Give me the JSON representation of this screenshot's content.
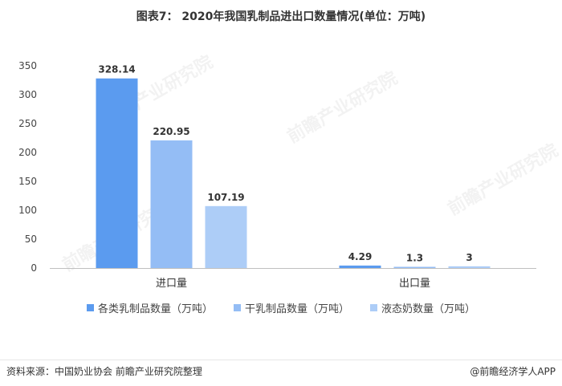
{
  "title": "图表7： 2020年我国乳制品进出口数量情况(单位：万吨)",
  "footer": {
    "source": "资料来源：中国奶业协会 前瞻产业研究院整理",
    "brand": "@前瞻经济学人APP"
  },
  "watermark": "前瞻产业研究院",
  "chart_data": {
    "type": "bar",
    "categories": [
      "进口量",
      "出口量"
    ],
    "series": [
      {
        "name": "各类乳制品数量（万吨）",
        "color": "#5b9bef",
        "values": [
          328.14,
          4.29
        ],
        "labels": [
          "328.14",
          "4.29"
        ]
      },
      {
        "name": "干乳制品数量（万吨）",
        "color": "#94bdf5",
        "values": [
          220.95,
          1.3
        ],
        "labels": [
          "220.95",
          "1.3"
        ]
      },
      {
        "name": "液态奶数量（万吨）",
        "color": "#adcdf7",
        "values": [
          107.19,
          3
        ],
        "labels": [
          "107.19",
          "3"
        ]
      }
    ],
    "yticks": [
      "0",
      "50",
      "100",
      "150",
      "200",
      "250",
      "300",
      "350"
    ],
    "ylim": [
      0,
      350
    ],
    "grid": false,
    "legend": "bottom"
  }
}
